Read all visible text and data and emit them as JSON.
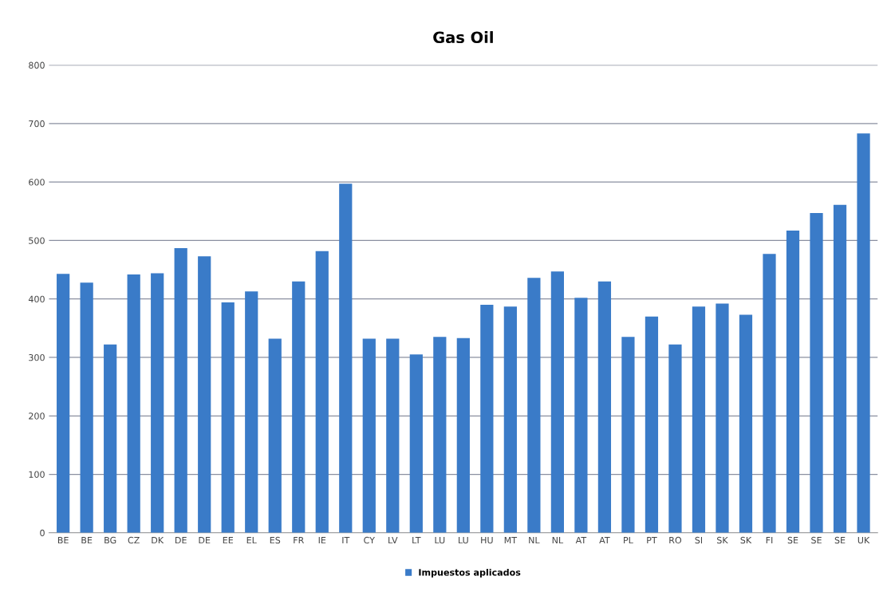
{
  "chart_data": {
    "type": "bar",
    "title": "Gas Oil",
    "categories": [
      "BE",
      "BE",
      "BG",
      "CZ",
      "DK",
      "DE",
      "DE",
      "EE",
      "EL",
      "ES",
      "FR",
      "IE",
      "IT",
      "CY",
      "LV",
      "LT",
      "LU",
      "LU",
      "HU",
      "MT",
      "NL",
      "NL",
      "AT",
      "AT",
      "PL",
      "PT",
      "RO",
      "SI",
      "SK",
      "SK",
      "FI",
      "SE",
      "SE",
      "SE",
      "UK"
    ],
    "series": [
      {
        "name": "Impuestos aplicados",
        "color": "#3a7bc8",
        "values": [
          443,
          428,
          322,
          442,
          444,
          487,
          473,
          394,
          413,
          332,
          430,
          482,
          597,
          332,
          332,
          305,
          335,
          333,
          390,
          387,
          436,
          447,
          402,
          430,
          335,
          370,
          322,
          387,
          392,
          373,
          477,
          517,
          547,
          561,
          683
        ]
      }
    ],
    "ylim": [
      0,
      800
    ],
    "yticks": [
      0,
      100,
      200,
      300,
      400,
      500,
      600,
      700,
      800
    ],
    "grid": "y",
    "legend": "bottom"
  }
}
